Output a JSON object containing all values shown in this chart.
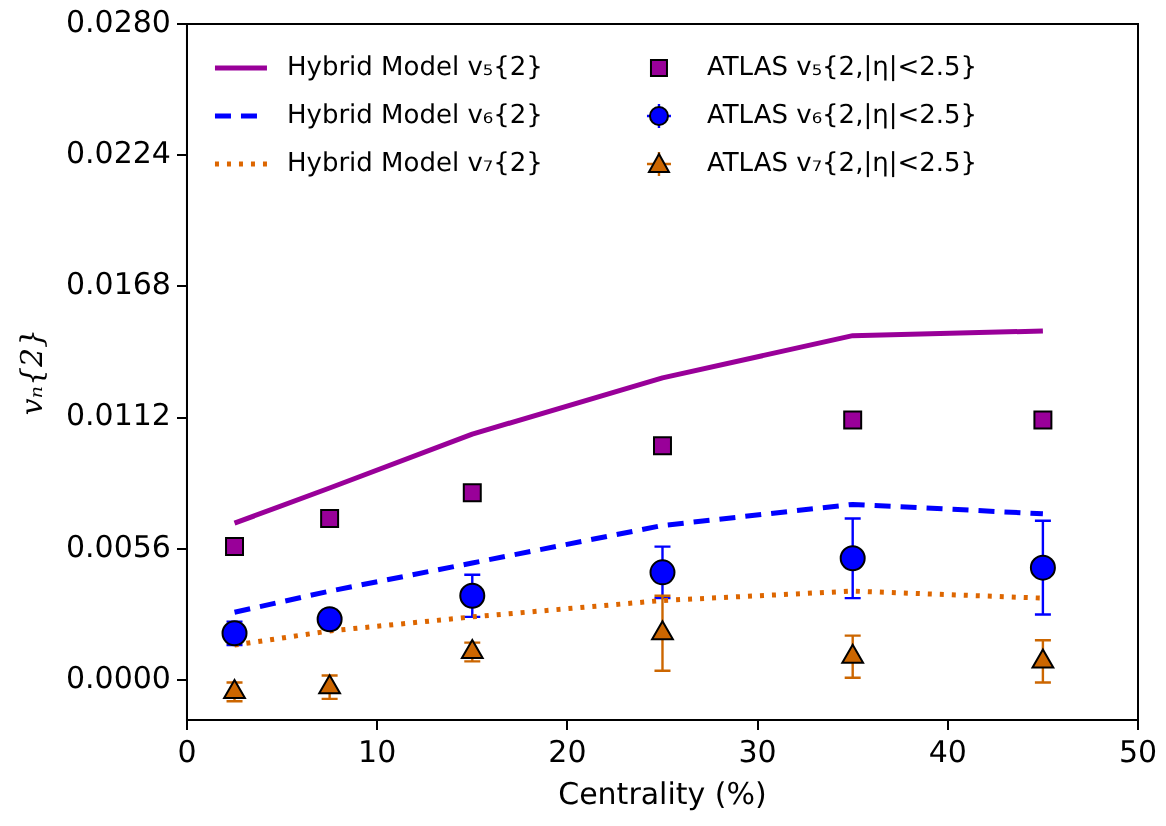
{
  "chart_data": {
    "type": "line",
    "xlabel": "Centrality (%)",
    "ylabel": "vₙ{2}",
    "xlim": [
      0,
      50
    ],
    "xticks": [
      0,
      10,
      20,
      30,
      40,
      50
    ],
    "ylim": [
      -0.0017,
      0.028
    ],
    "yticks": [
      {
        "value": 0,
        "label": "0.0000"
      },
      0.0056,
      0.0112,
      0.0168,
      0.0224,
      {
        "value": 0.028,
        "label": "0.0280"
      }
    ],
    "grid": false,
    "legend": "top",
    "series": [
      {
        "name": "Hybrid Model v₅{2}",
        "line_style": "solid",
        "marker": "none",
        "color": "#990099",
        "x": [
          2.5,
          7.5,
          15,
          25,
          35,
          45
        ],
        "values": [
          0.0067,
          0.0082,
          0.0105,
          0.0129,
          0.0147,
          0.0149
        ]
      },
      {
        "name": "ATLAS v₅{2,|η|<2.5}",
        "type": "scatter",
        "marker": "square",
        "color": "#990099",
        "x": [
          2.5,
          7.5,
          15,
          25,
          35,
          45
        ],
        "values": [
          0.0057,
          0.0069,
          0.008,
          0.01,
          0.0111,
          0.0111
        ]
      },
      {
        "name": "Hybrid Model v₆{2}",
        "line_style": "dashed",
        "marker": "none",
        "color": "#0000ff",
        "x": [
          2.5,
          7.5,
          15,
          25,
          35,
          45
        ],
        "values": [
          0.0029,
          0.0038,
          0.005,
          0.0066,
          0.0075,
          0.0071
        ]
      },
      {
        "name": "ATLAS v₆{2,|η|<2.5}",
        "type": "scatter",
        "marker": "circle",
        "color": "#0000ff",
        "x": [
          2.5,
          7.5,
          15,
          25,
          35,
          45
        ],
        "values": [
          0.002,
          0.0026,
          0.0036,
          0.0046,
          0.0052,
          0.0048
        ],
        "errors": [
          0.0005,
          0.0004,
          0.0009,
          0.0011,
          0.0017,
          0.002
        ]
      },
      {
        "name": "Hybrid Model v₇{2}",
        "line_style": "dotted",
        "marker": "none",
        "color": "#dd6600",
        "x": [
          2.5,
          7.5,
          15,
          25,
          35,
          45
        ],
        "values": [
          0.0015,
          0.0021,
          0.0027,
          0.0034,
          0.0038,
          0.0035
        ]
      },
      {
        "name": "ATLAS v₇{2,|η|<2.5}",
        "type": "scatter",
        "marker": "triangle",
        "color": "#cc6600",
        "x": [
          2.5,
          7.5,
          15,
          25,
          35,
          45
        ],
        "values": [
          -0.0005,
          -0.0003,
          0.0012,
          0.002,
          0.001,
          0.0008
        ],
        "errors": [
          0.0004,
          0.0005,
          0.0004,
          0.0016,
          0.0009,
          0.0009
        ]
      }
    ]
  }
}
